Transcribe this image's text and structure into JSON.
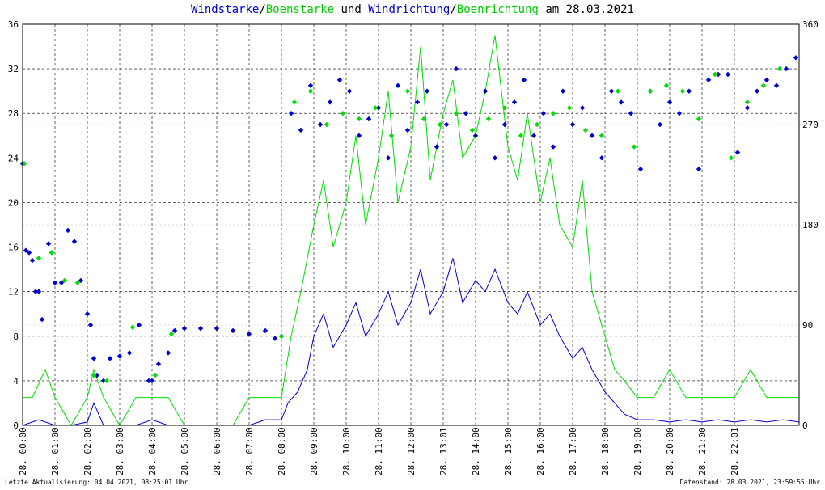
{
  "title": {
    "part1": "Windstarke",
    "sep1": "/",
    "part2": "Boenstarke",
    "part3": " und ",
    "part4": "Windrichtung",
    "sep2": "/",
    "part5": "Boenrichtung",
    "part6": " am 28.03.2021"
  },
  "colors": {
    "wind": "#0000cc",
    "gust": "#00dd00",
    "grid": "#000000",
    "background": "#ffffff"
  },
  "footer": {
    "left": "Letzte Aktualisierung: 04.04.2021, 08:25:01 Uhr",
    "right": "Datenstand: 28.03.2021, 23:59:55 Uhr"
  },
  "chart_data": {
    "type": "line",
    "ylim_left": [
      0,
      36
    ],
    "yticks_left": [
      "0",
      "4",
      "8",
      "12",
      "16",
      "20",
      "24",
      "28",
      "32",
      "36"
    ],
    "ylim_right": [
      0,
      360
    ],
    "yticks_right": [
      "0",
      "90",
      "180",
      "270",
      "360"
    ],
    "xlim_hours": [
      0,
      24
    ],
    "xticks": [
      "28. 00:00",
      "28. 01:00",
      "28. 02:00",
      "28. 03:00",
      "28. 04:00",
      "28. 05:00",
      "28. 06:00",
      "28. 07:00",
      "28. 08:00",
      "28. 09:00",
      "28. 10:00",
      "28. 11:00",
      "28. 12:00",
      "28. 13:01",
      "28. 14:00",
      "28. 15:00",
      "28. 16:00",
      "28. 17:00",
      "28. 18:00",
      "28. 19:00",
      "28. 20:00",
      "28. 21:00",
      "28. 22:01"
    ],
    "grid": true,
    "series": [
      {
        "name": "Windstarke",
        "kind": "line",
        "axis": "left",
        "x": [
          0.0,
          0.5,
          1.0,
          1.5,
          2.0,
          2.2,
          2.5,
          3.0,
          3.5,
          4.0,
          4.5,
          5.0,
          5.5,
          6.0,
          6.5,
          7.0,
          7.5,
          8.0,
          8.2,
          8.5,
          8.8,
          9.0,
          9.3,
          9.6,
          10.0,
          10.3,
          10.6,
          11.0,
          11.3,
          11.6,
          12.0,
          12.3,
          12.6,
          13.0,
          13.3,
          13.6,
          14.0,
          14.3,
          14.6,
          15.0,
          15.3,
          15.6,
          16.0,
          16.3,
          16.6,
          17.0,
          17.3,
          17.6,
          18.0,
          18.3,
          18.6,
          19.0,
          19.5,
          20.0,
          20.5,
          21.0,
          21.5,
          22.0,
          22.5,
          23.0,
          23.5,
          24.0
        ],
        "values": [
          0,
          0.5,
          0,
          0,
          0.3,
          2,
          0,
          0,
          0,
          0.5,
          0,
          0,
          0,
          0,
          0,
          0,
          0.5,
          0.5,
          2,
          3,
          5,
          8,
          10,
          7,
          9,
          11,
          8,
          10,
          12,
          9,
          11,
          14,
          10,
          12,
          15,
          11,
          13,
          12,
          14,
          11,
          10,
          12,
          9,
          10,
          8,
          6,
          7,
          5,
          3,
          2,
          1,
          0.5,
          0.5,
          0.3,
          0.5,
          0.3,
          0.5,
          0.3,
          0.5,
          0.3,
          0.5,
          0.3
        ]
      },
      {
        "name": "Boenstarke",
        "kind": "line",
        "axis": "left",
        "x": [
          0.0,
          0.3,
          0.7,
          1.0,
          1.5,
          2.0,
          2.2,
          2.5,
          3.0,
          3.5,
          4.0,
          4.5,
          5.0,
          5.5,
          6.0,
          6.5,
          7.0,
          7.5,
          8.0,
          8.3,
          8.6,
          9.0,
          9.3,
          9.6,
          10.0,
          10.3,
          10.6,
          11.0,
          11.3,
          11.6,
          12.0,
          12.3,
          12.6,
          13.0,
          13.3,
          13.6,
          14.0,
          14.3,
          14.6,
          15.0,
          15.3,
          15.6,
          16.0,
          16.3,
          16.6,
          17.0,
          17.3,
          17.6,
          18.0,
          18.3,
          18.6,
          19.0,
          19.5,
          20.0,
          20.5,
          21.0,
          21.5,
          22.0,
          22.5,
          23.0,
          23.5,
          24.0
        ],
        "values": [
          2.5,
          2.5,
          5,
          2.5,
          0,
          2.5,
          5,
          2.5,
          0,
          2.5,
          2.5,
          2.5,
          0,
          0,
          0,
          0,
          2.5,
          2.5,
          2.5,
          8,
          12,
          18,
          22,
          16,
          20,
          26,
          18,
          24,
          30,
          20,
          25,
          34,
          22,
          28,
          31,
          24,
          26,
          30,
          35,
          25,
          22,
          28,
          20,
          24,
          18,
          16,
          22,
          12,
          8,
          5,
          4,
          2.5,
          2.5,
          5,
          2.5,
          2.5,
          2.5,
          2.5,
          5,
          2.5,
          2.5,
          2.5
        ]
      },
      {
        "name": "Windrichtung",
        "kind": "scatter",
        "axis": "right",
        "x": [
          0.0,
          0.1,
          0.2,
          0.3,
          0.4,
          0.5,
          0.6,
          0.8,
          0.9,
          1.0,
          1.2,
          1.4,
          1.6,
          1.8,
          2.0,
          2.1,
          2.2,
          2.3,
          2.5,
          2.7,
          3.0,
          3.3,
          3.6,
          3.9,
          4.0,
          4.2,
          4.5,
          4.7,
          5.0,
          5.5,
          6.0,
          6.5,
          7.0,
          7.5,
          7.8,
          8.0,
          8.3,
          8.6,
          8.9,
          9.2,
          9.5,
          9.8,
          10.1,
          10.4,
          10.7,
          11.0,
          11.3,
          11.6,
          11.9,
          12.2,
          12.5,
          12.8,
          13.1,
          13.4,
          13.7,
          14.0,
          14.3,
          14.6,
          14.9,
          15.2,
          15.5,
          15.8,
          16.1,
          16.4,
          16.7,
          17.0,
          17.3,
          17.6,
          17.9,
          18.2,
          18.5,
          18.8,
          19.1,
          19.4,
          19.7,
          20.0,
          20.3,
          20.6,
          20.9,
          21.2,
          21.5,
          21.8,
          22.1,
          22.4,
          22.7,
          23.0,
          23.3,
          23.6,
          23.9
        ],
        "values": [
          235,
          157,
          155,
          148,
          120,
          120,
          95,
          163,
          155,
          128,
          128,
          175,
          165,
          130,
          100,
          90,
          60,
          45,
          40,
          60,
          62,
          65,
          90,
          40,
          40,
          55,
          65,
          85,
          87,
          87,
          87,
          85,
          82,
          85,
          78,
          80,
          280,
          265,
          305,
          270,
          290,
          310,
          300,
          260,
          275,
          285,
          240,
          305,
          265,
          290,
          300,
          250,
          270,
          320,
          280,
          260,
          300,
          240,
          270,
          290,
          310,
          260,
          280,
          250,
          300,
          270,
          285,
          260,
          240,
          300,
          290,
          280,
          230,
          300,
          270,
          290,
          280,
          300,
          230,
          310,
          315,
          315,
          245,
          285,
          300,
          310,
          305,
          320,
          330
        ]
      },
      {
        "name": "Boenrichtung",
        "kind": "scatter",
        "axis": "right",
        "x": [
          0.05,
          0.5,
          0.9,
          1.3,
          1.7,
          2.2,
          2.6,
          3.4,
          4.1,
          4.6,
          8.0,
          8.4,
          8.9,
          9.4,
          9.9,
          10.4,
          10.9,
          11.4,
          11.9,
          12.4,
          12.9,
          13.4,
          13.9,
          14.4,
          14.9,
          15.4,
          15.9,
          16.4,
          16.9,
          17.4,
          17.9,
          18.4,
          18.9,
          19.4,
          19.9,
          20.4,
          20.9,
          21.4,
          21.9,
          22.4,
          22.9,
          23.4
        ],
        "values": [
          235,
          150,
          155,
          130,
          128,
          45,
          40,
          88,
          45,
          82,
          80,
          290,
          300,
          270,
          280,
          275,
          285,
          260,
          300,
          275,
          270,
          280,
          265,
          275,
          285,
          260,
          270,
          280,
          285,
          265,
          260,
          300,
          250,
          300,
          305,
          300,
          275,
          315,
          240,
          290,
          305,
          320
        ]
      }
    ]
  }
}
